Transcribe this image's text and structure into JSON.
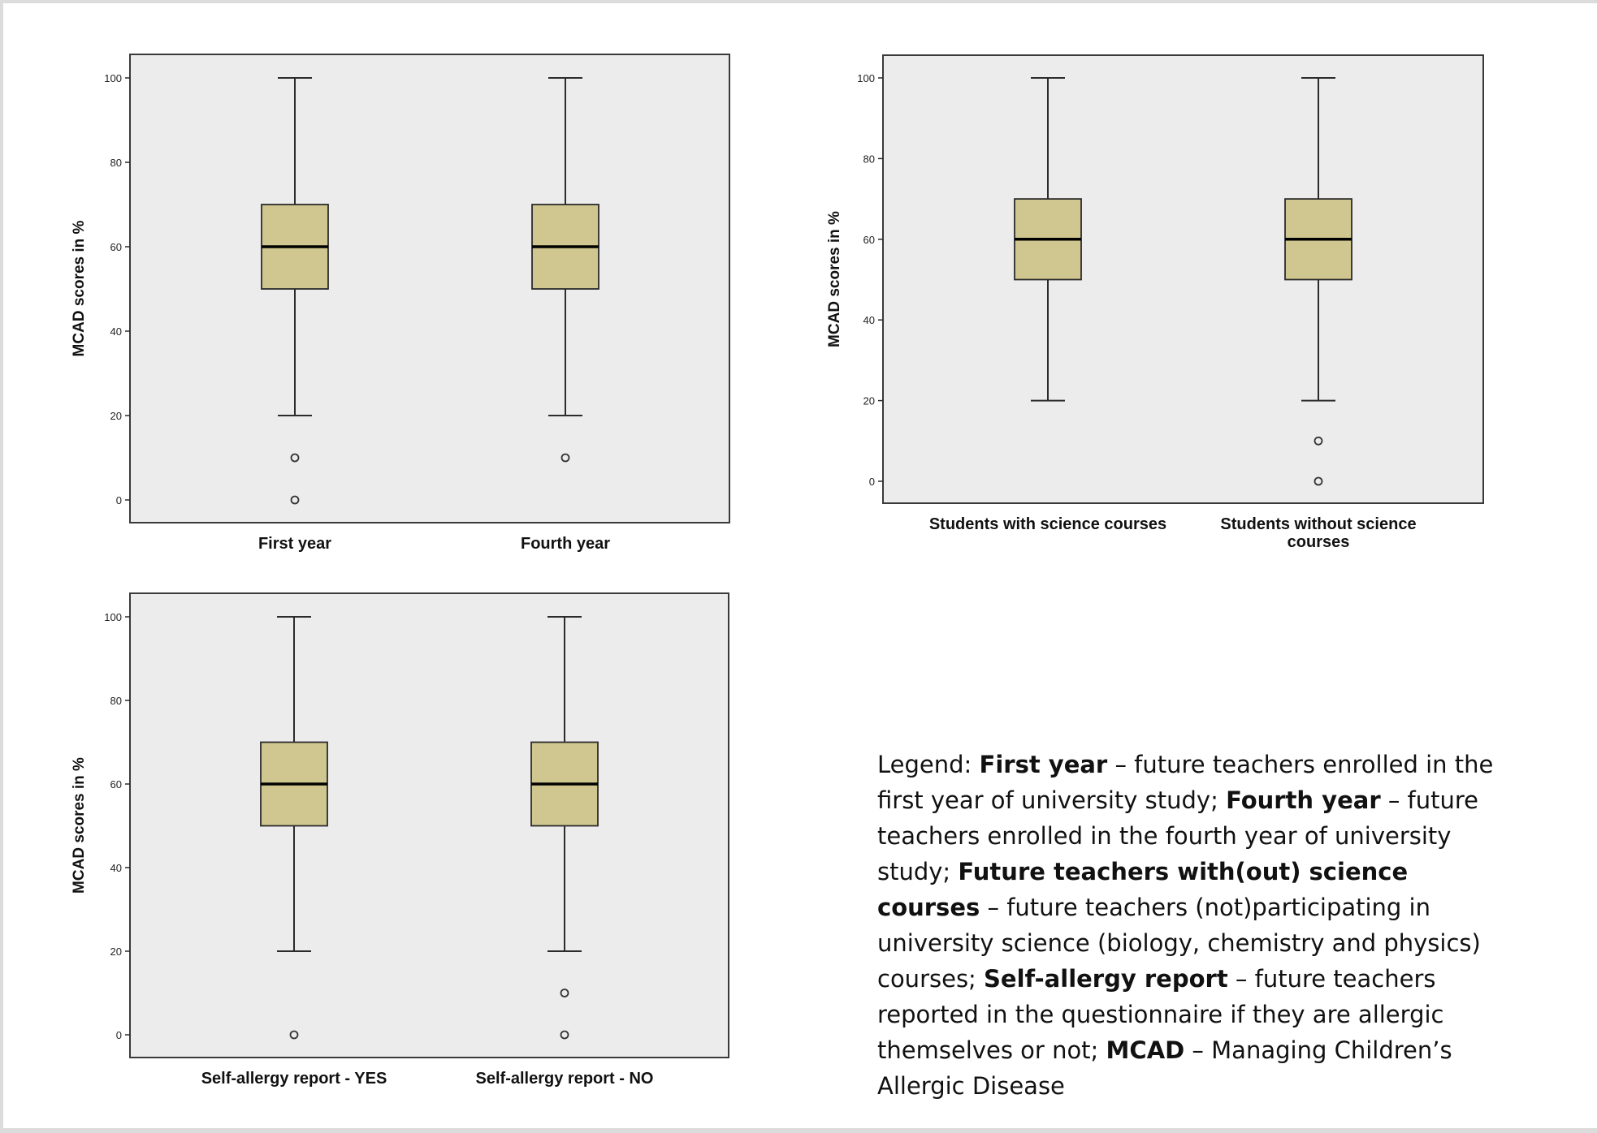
{
  "chart_data": [
    {
      "type": "box",
      "ylabel": "MCAD scores in %",
      "ylim": [
        0,
        100
      ],
      "yticks": [
        0,
        20,
        40,
        60,
        80,
        100
      ],
      "categories": [
        [
          "First year"
        ],
        [
          "Fourth year"
        ]
      ],
      "boxes": [
        {
          "min": 20,
          "q1": 50,
          "median": 60,
          "q3": 70,
          "max": 100,
          "outliers": [
            10,
            0
          ]
        },
        {
          "min": 20,
          "q1": 50,
          "median": 60,
          "q3": 70,
          "max": 100,
          "outliers": [
            10
          ]
        }
      ]
    },
    {
      "type": "box",
      "ylabel": "MCAD scores in %",
      "ylim": [
        0,
        100
      ],
      "yticks": [
        0,
        20,
        40,
        60,
        80,
        100
      ],
      "categories": [
        [
          "Students with science courses"
        ],
        [
          "Students without science",
          "courses"
        ]
      ],
      "boxes": [
        {
          "min": 20,
          "q1": 50,
          "median": 60,
          "q3": 70,
          "max": 100,
          "outliers": []
        },
        {
          "min": 20,
          "q1": 50,
          "median": 60,
          "q3": 70,
          "max": 100,
          "outliers": [
            10,
            0
          ]
        }
      ]
    },
    {
      "type": "box",
      "ylabel": "MCAD scores in %",
      "ylim": [
        0,
        100
      ],
      "yticks": [
        0,
        20,
        40,
        60,
        80,
        100
      ],
      "categories": [
        [
          "Self-allergy report - YES"
        ],
        [
          "Self-allergy report - NO"
        ]
      ],
      "boxes": [
        {
          "min": 20,
          "q1": 50,
          "median": 60,
          "q3": 70,
          "max": 100,
          "outliers": [
            0
          ]
        },
        {
          "min": 20,
          "q1": 50,
          "median": 60,
          "q3": 70,
          "max": 100,
          "outliers": [
            10,
            0
          ]
        }
      ]
    }
  ],
  "colors": {
    "box_fill": "#cfc78f",
    "plot_bg": "#ececec",
    "line": "#2b2b2b"
  },
  "legend": {
    "p1": "Legend: ",
    "b1": "First year",
    "p2": " – future teachers enrolled in the first year of university study; ",
    "b2": "Fourth year",
    "p3": " – future teachers enrolled in the fourth year of university study; ",
    "b3": "Future teachers with(out) science courses",
    "p4": " – future teachers (not)participating in university science (biology, chemistry and physics) courses; ",
    "b4": "Self-allergy report",
    "p5": " – future teachers reported in the questionnaire if they are allergic themselves or not; ",
    "b5": "MCAD",
    "p6": " – Managing Children’s Allergic Disease"
  }
}
